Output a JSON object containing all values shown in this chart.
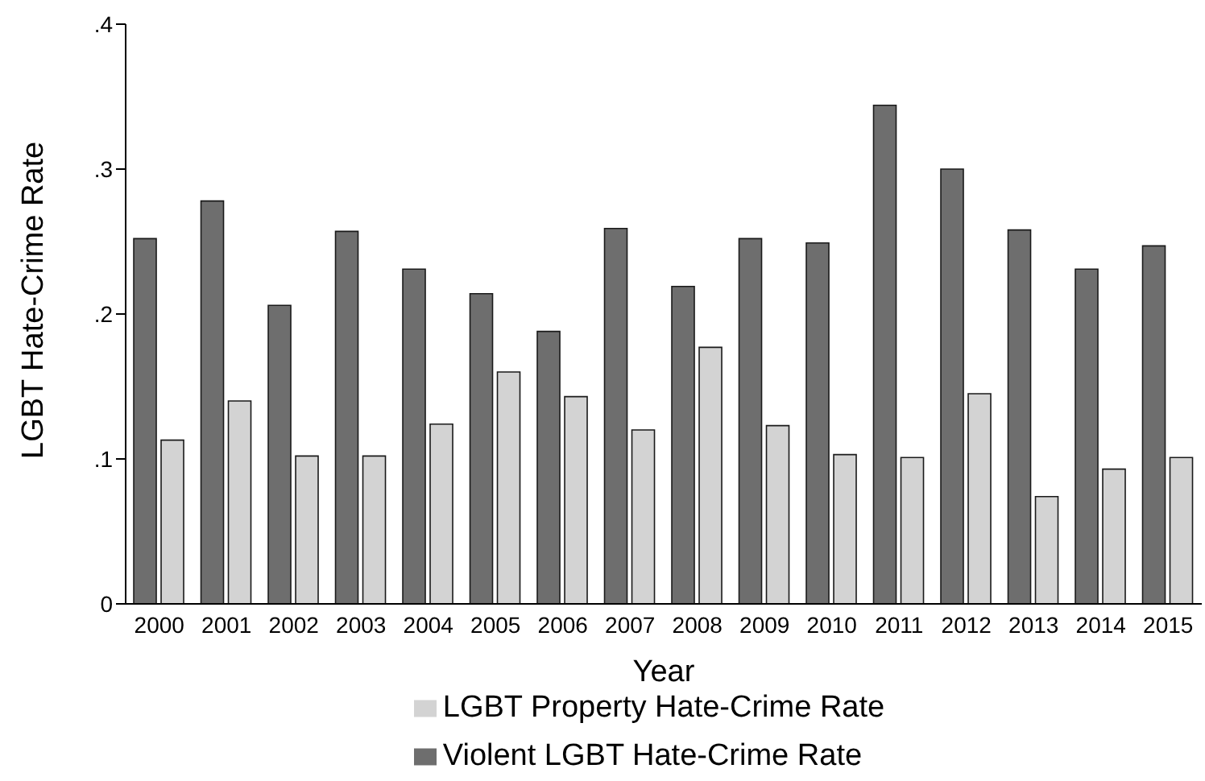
{
  "chart_data": {
    "type": "bar",
    "xlabel": "Year",
    "ylabel": "LGBT Hate-Crime Rate",
    "categories": [
      "2000",
      "2001",
      "2002",
      "2003",
      "2004",
      "2005",
      "2006",
      "2007",
      "2008",
      "2009",
      "2010",
      "2011",
      "2012",
      "2013",
      "2014",
      "2015"
    ],
    "series": [
      {
        "name": "Violent LGBT Hate-Crime Rate",
        "color": "#6e6e6e",
        "values": [
          0.252,
          0.278,
          0.206,
          0.257,
          0.231,
          0.214,
          0.188,
          0.259,
          0.219,
          0.252,
          0.249,
          0.344,
          0.3,
          0.258,
          0.231,
          0.247
        ]
      },
      {
        "name": "LGBT Property Hate-Crime Rate",
        "color": "#d3d3d3",
        "values": [
          0.113,
          0.14,
          0.102,
          0.102,
          0.124,
          0.16,
          0.143,
          0.12,
          0.177,
          0.123,
          0.103,
          0.101,
          0.145,
          0.074,
          0.093,
          0.101
        ]
      }
    ],
    "ylim": [
      0,
      0.4
    ],
    "yticks": [
      {
        "value": 0,
        "label": "0"
      },
      {
        "value": 0.1,
        "label": ".1"
      },
      {
        "value": 0.2,
        "label": ".2"
      },
      {
        "value": 0.3,
        "label": ".3"
      },
      {
        "value": 0.4,
        "label": ".4"
      }
    ],
    "grid": false,
    "legend": "bottom"
  }
}
